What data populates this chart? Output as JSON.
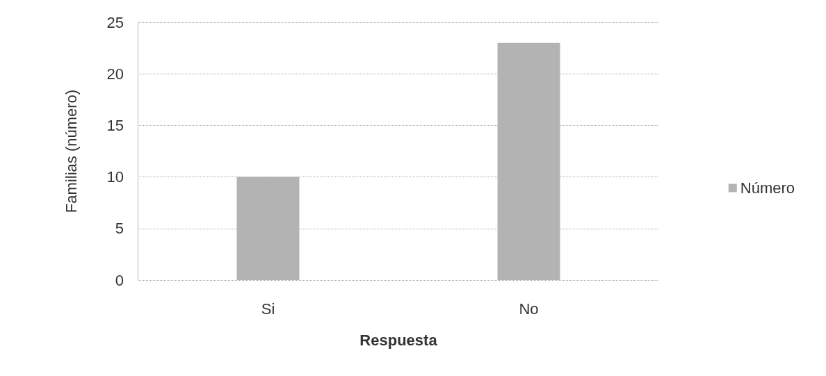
{
  "chart_data": {
    "type": "bar",
    "xlabel": "Respuesta",
    "ylabel": "Familias (número)",
    "categories": [
      "Si",
      "No"
    ],
    "series": [
      {
        "name": "Número",
        "color": "#b3b3b3",
        "values": [
          10,
          23
        ]
      }
    ],
    "ylim": [
      0,
      25
    ],
    "yticks": [
      0,
      5,
      10,
      15,
      20,
      25
    ],
    "grid": "y",
    "legend": "right"
  }
}
